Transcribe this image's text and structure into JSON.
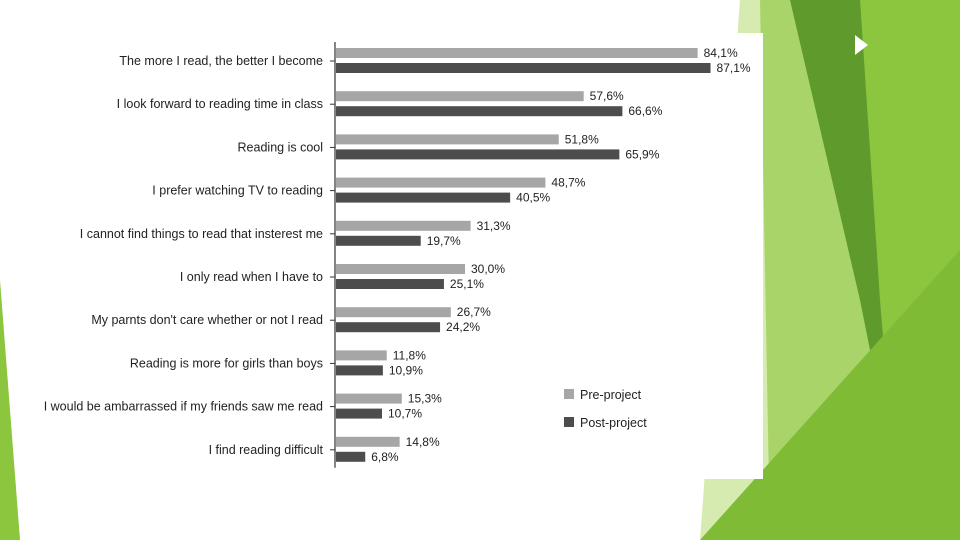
{
  "colors": {
    "pre_bar": "#a6a6a6",
    "post_bar": "#4d4d4d",
    "axis": "#333333",
    "accent_light": "#c5e08e",
    "accent_mid": "#8cc63f",
    "accent_dark": "#5f9a2c"
  },
  "chart_data": {
    "type": "bar",
    "orientation": "horizontal",
    "categories": [
      "The more I read, the better I become",
      "I look forward to reading time in class",
      "Reading is cool",
      "I prefer watching TV to reading",
      "I cannot find things to read that insterest me",
      "I only read when I have to",
      "My parnts don't care whether or not I read",
      "Reading is more for girls than boys",
      "I would be ambarrassed if my friends saw me read",
      "I find reading difficult"
    ],
    "series": [
      {
        "name": "Pre-project",
        "values": [
          84.1,
          57.6,
          51.8,
          48.7,
          31.3,
          30.0,
          26.7,
          11.8,
          15.3,
          14.8
        ],
        "labels": [
          "84,1%",
          "57,6%",
          "51,8%",
          "48,7%",
          "31,3%",
          "30,0%",
          "26,7%",
          "11,8%",
          "15,3%",
          "14,8%"
        ]
      },
      {
        "name": "Post-project",
        "values": [
          87.1,
          66.6,
          65.9,
          40.5,
          19.7,
          25.1,
          24.2,
          10.9,
          10.7,
          6.8
        ],
        "labels": [
          "87,1%",
          "66,6%",
          "65,9%",
          "40,5%",
          "19,7%",
          "25,1%",
          "24,2%",
          "10,9%",
          "10,7%",
          "6,8%"
        ]
      }
    ],
    "xlim": [
      0,
      100
    ],
    "legend": {
      "position": "bottom-right",
      "entries": [
        "Pre-project",
        "Post-project"
      ]
    },
    "title": "",
    "xlabel": "",
    "ylabel": ""
  }
}
